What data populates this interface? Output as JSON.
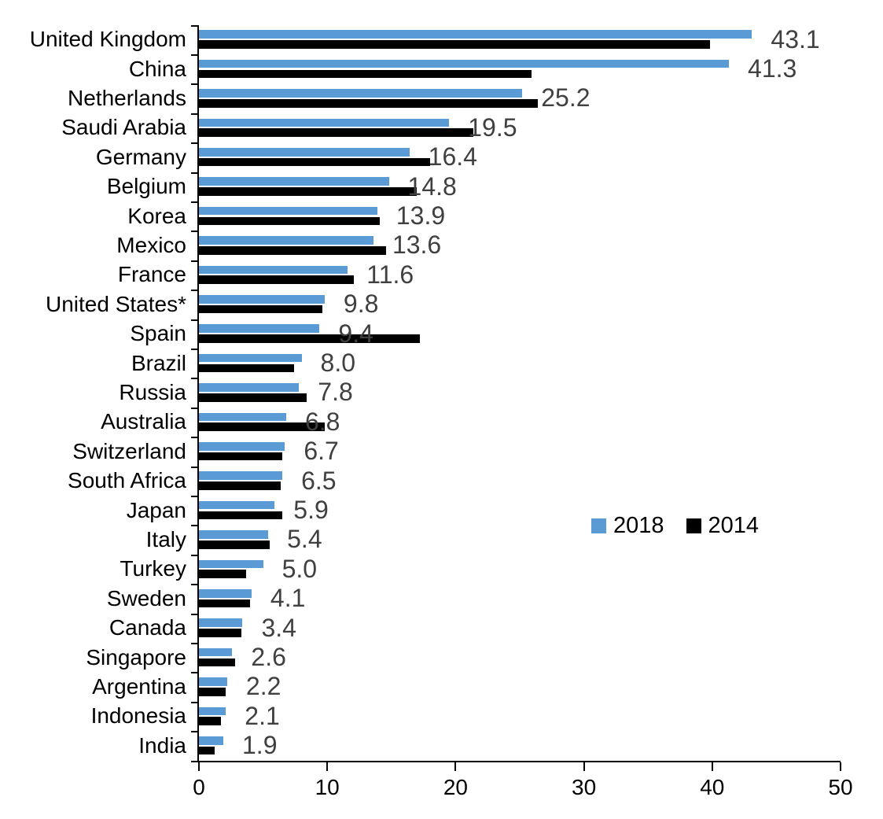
{
  "chart_data": {
    "type": "bar",
    "orientation": "horizontal",
    "title": "",
    "xlabel": "",
    "ylabel": "",
    "xlim": [
      0,
      50
    ],
    "x_ticks": [
      "0",
      "10",
      "20",
      "30",
      "40",
      "50"
    ],
    "grid": false,
    "legend_position": "middle-right",
    "value_label_color": "#404040",
    "categories": [
      "United Kingdom",
      "China",
      "Netherlands",
      "Saudi Arabia",
      "Germany",
      "Belgium",
      "Korea",
      "Mexico",
      "France",
      "United States*",
      "Spain",
      "Brazil",
      "Russia",
      "Australia",
      "Switzerland",
      "South Africa",
      "Japan",
      "Italy",
      "Turkey",
      "Sweden",
      "Canada",
      "Singapore",
      "Argentina",
      "Indonesia",
      "India"
    ],
    "series": [
      {
        "name": "2018",
        "color": "#5B9BD5",
        "values": [
          43.1,
          41.3,
          25.2,
          19.5,
          16.4,
          14.8,
          13.9,
          13.6,
          11.6,
          9.8,
          9.4,
          8.0,
          7.8,
          6.8,
          6.7,
          6.5,
          5.9,
          5.4,
          5.0,
          4.1,
          3.4,
          2.6,
          2.2,
          2.1,
          1.9
        ]
      },
      {
        "name": "2014",
        "color": "#000000",
        "values": [
          39.8,
          25.9,
          26.4,
          21.4,
          18.0,
          17.0,
          14.1,
          14.6,
          12.1,
          9.6,
          17.2,
          7.4,
          8.4,
          9.8,
          6.5,
          6.4,
          6.5,
          5.5,
          3.7,
          4.0,
          3.3,
          2.8,
          2.1,
          1.7,
          1.2
        ]
      }
    ],
    "value_labels": [
      "43.1",
      "41.3",
      "25.2",
      "19.5",
      "16.4",
      "14.8",
      "13.9",
      "13.6",
      "11.6",
      "9.8",
      "9.4",
      "8.0",
      "7.8",
      "6.8",
      "6.7",
      "6.5",
      "5.9",
      "5.4",
      "5.0",
      "4.1",
      "3.4",
      "2.6",
      "2.2",
      "2.1",
      "1.9"
    ]
  }
}
